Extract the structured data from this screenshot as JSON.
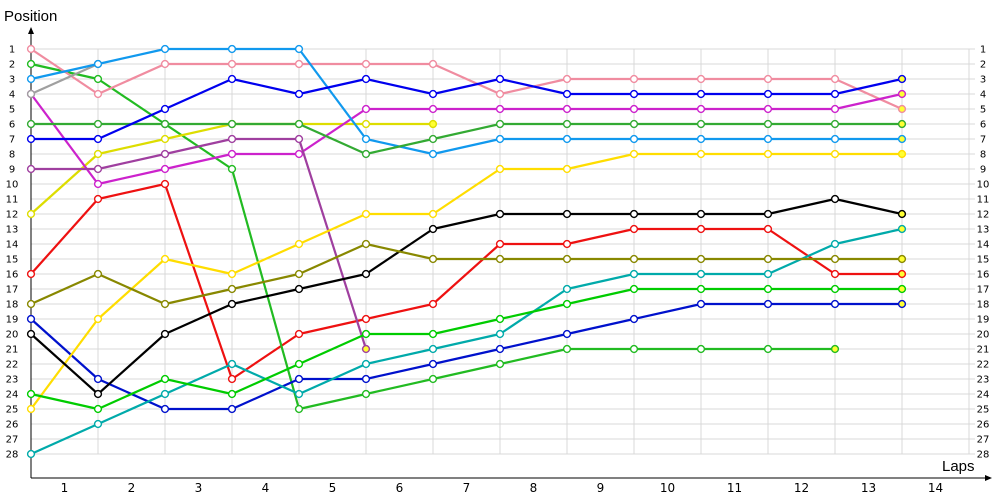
{
  "chart_data": {
    "type": "line",
    "title": "",
    "ylabel": "Position",
    "xlabel": "Laps",
    "x_ticks": [
      "1",
      "2",
      "3",
      "4",
      "5",
      "6",
      "7",
      "8",
      "9",
      "10",
      "11",
      "12",
      "13",
      "14"
    ],
    "y_ticks": [
      "1",
      "2",
      "3",
      "4",
      "5",
      "6",
      "7",
      "8",
      "9",
      "10",
      "11",
      "12",
      "13",
      "14",
      "15",
      "16",
      "17",
      "18",
      "19",
      "20",
      "21",
      "22",
      "23",
      "24",
      "25",
      "26",
      "27",
      "28"
    ],
    "ylim": [
      1,
      28
    ],
    "y_inverted": true,
    "grid": true,
    "legend": "none",
    "series": [
      {
        "color": "#ee1111",
        "values": [
          16,
          11,
          10,
          23,
          20,
          19,
          18,
          14,
          14,
          13,
          13,
          13,
          16,
          16
        ]
      },
      {
        "color": "#22bb22",
        "values": [
          2,
          3,
          6,
          9,
          25,
          24,
          23,
          22,
          21,
          21,
          21,
          21,
          21,
          null
        ]
      },
      {
        "color": "#0011cc",
        "values": [
          19,
          23,
          25,
          25,
          23,
          23,
          22,
          21,
          20,
          19,
          18,
          18,
          18,
          18
        ]
      },
      {
        "color": "#f08ca0",
        "values": [
          1,
          4,
          2,
          2,
          2,
          2,
          2,
          4,
          3,
          3,
          3,
          3,
          3,
          5
        ]
      },
      {
        "color": "#dddd00",
        "values": [
          12,
          8,
          7,
          6,
          6,
          6,
          6,
          null,
          null,
          null,
          null,
          null,
          null,
          null
        ]
      },
      {
        "color": "#cc22cc",
        "values": [
          4,
          10,
          9,
          8,
          8,
          5,
          5,
          5,
          5,
          5,
          5,
          5,
          5,
          4
        ]
      },
      {
        "color": "#a0a0a0",
        "values": [
          4,
          2,
          null,
          null,
          null,
          null,
          null,
          null,
          null,
          null,
          null,
          null,
          null,
          null
        ]
      },
      {
        "color": "#00aaaa",
        "values": [
          28,
          26,
          24,
          22,
          24,
          22,
          21,
          20,
          17,
          16,
          16,
          16,
          14,
          13
        ]
      },
      {
        "color": "#1199ee",
        "values": [
          3,
          2,
          1,
          1,
          1,
          7,
          8,
          7,
          7,
          7,
          7,
          7,
          7,
          7
        ]
      },
      {
        "color": "#9f3f9f",
        "values": [
          9,
          9,
          8,
          7,
          7,
          21,
          null,
          null,
          null,
          null,
          null,
          null,
          null,
          null
        ]
      },
      {
        "color": "#ffdd00",
        "values": [
          25,
          19,
          15,
          16,
          14,
          12,
          12,
          9,
          9,
          8,
          8,
          8,
          8,
          8
        ]
      },
      {
        "color": "#000000",
        "values": [
          20,
          24,
          20,
          18,
          17,
          16,
          13,
          12,
          12,
          12,
          12,
          12,
          11,
          12
        ]
      },
      {
        "color": "#888800",
        "values": [
          18,
          16,
          18,
          17,
          16,
          14,
          15,
          15,
          15,
          15,
          15,
          15,
          15,
          15
        ]
      },
      {
        "color": "#33aa33",
        "values": [
          6,
          6,
          6,
          6,
          6,
          8,
          7,
          6,
          6,
          6,
          6,
          6,
          6,
          6
        ]
      },
      {
        "color": "#0000ee",
        "values": [
          7,
          7,
          5,
          3,
          4,
          3,
          4,
          3,
          4,
          4,
          4,
          4,
          4,
          3
        ]
      },
      {
        "color": "#00cc00",
        "values": [
          24,
          25,
          23,
          24,
          22,
          20,
          20,
          19,
          18,
          17,
          17,
          17,
          17,
          17
        ]
      }
    ]
  }
}
